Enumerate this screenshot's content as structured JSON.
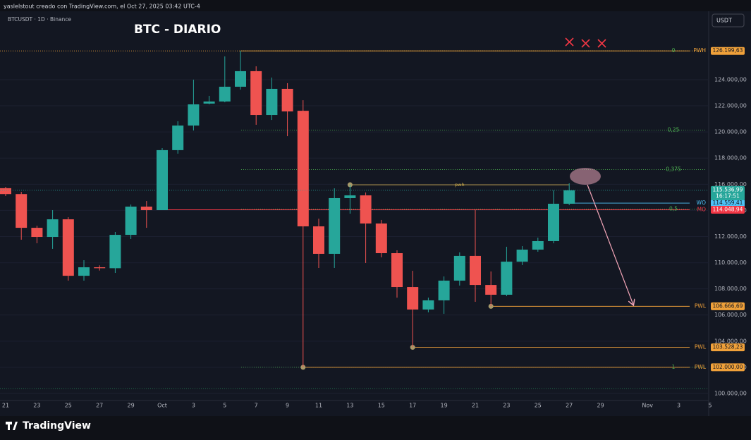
{
  "header": "yaslelstout creado con TradingView.com, el Oct 27, 2025 03:42 UTC-4",
  "footer_logo": "TradingView",
  "chart_data": {
    "type": "candlestick",
    "title": "BTC - DIARIO",
    "symbol": "BTCUSDT · 1D · Binance",
    "currency": "USDT",
    "categories": [
      "21",
      null,
      "23",
      null,
      "25",
      null,
      "27",
      null,
      "29",
      null,
      "Oct",
      null,
      "3",
      null,
      "5",
      null,
      "7",
      null,
      "9",
      null,
      "11",
      null,
      "13",
      null,
      "15",
      null,
      "17",
      null,
      "19",
      null,
      "21",
      null,
      "23",
      null,
      "25",
      null,
      "27",
      null,
      "29",
      null,
      null,
      "Nov",
      null,
      "3",
      null,
      "5"
    ],
    "open": [
      115700,
      115250,
      112670,
      111970,
      113320,
      109000,
      109650,
      109580,
      112130,
      114290,
      114020,
      118610,
      120490,
      122170,
      122330,
      123460,
      124650,
      121300,
      123300,
      121620,
      112780,
      110680,
      114940,
      115150,
      113000,
      110730,
      108140,
      106420,
      107120,
      108630,
      110520,
      108300,
      107550,
      110080,
      111000,
      111650,
      114510,
      null,
      null,
      null,
      null,
      null,
      null,
      null,
      null,
      null
    ],
    "high": [
      115800,
      115420,
      112830,
      114020,
      113480,
      110190,
      109800,
      112350,
      114450,
      114720,
      118770,
      120820,
      124000,
      122760,
      125780,
      126200,
      125020,
      124160,
      123730,
      122430,
      113370,
      115690,
      115960,
      115370,
      113270,
      110950,
      109380,
      107330,
      108950,
      110790,
      114070,
      109330,
      111220,
      111270,
      111920,
      115530,
      116070,
      null,
      null,
      null,
      null,
      null,
      null,
      null,
      null,
      null
    ],
    "low": [
      115100,
      111760,
      111490,
      111060,
      108630,
      108630,
      109400,
      109220,
      111810,
      112670,
      114020,
      118340,
      120110,
      122110,
      122270,
      123240,
      120550,
      120920,
      119680,
      102000,
      109600,
      109600,
      113750,
      109980,
      110410,
      107330,
      103530,
      106200,
      106090,
      108250,
      107010,
      106670,
      107440,
      109820,
      110840,
      111490,
      114400,
      null,
      null,
      null,
      null,
      null,
      null,
      null,
      null,
      null
    ],
    "close": [
      115250,
      112670,
      111970,
      113320,
      109000,
      109650,
      109580,
      112130,
      114290,
      114020,
      118610,
      120490,
      122110,
      122330,
      123460,
      124650,
      121300,
      123300,
      121570,
      112780,
      110680,
      114940,
      115150,
      113000,
      110730,
      108140,
      106420,
      107120,
      108630,
      110520,
      108300,
      107550,
      110080,
      111000,
      111650,
      114510,
      115537,
      null,
      null,
      null,
      null,
      null,
      null,
      null,
      null,
      null
    ],
    "up_color": "#26a69a",
    "down_color": "#ef5350",
    "ylim": [
      99460,
      129230
    ],
    "yticks": [
      {
        "value": 100000,
        "label": "100.000,00"
      },
      {
        "value": 102000,
        "label": "102.000,00"
      },
      {
        "value": 104000,
        "label": "104.000,00"
      },
      {
        "value": 106000,
        "label": "106.000,00"
      },
      {
        "value": 108000,
        "label": "108.000,00"
      },
      {
        "value": 110000,
        "label": "110.000,00"
      },
      {
        "value": 112000,
        "label": "112.000,00"
      },
      {
        "value": 114000,
        "label": "114.000,00"
      },
      {
        "value": 116000,
        "label": "116.000,00"
      },
      {
        "value": 118000,
        "label": "118.000,00"
      },
      {
        "value": 120000,
        "label": "120.000,00"
      },
      {
        "value": 122000,
        "label": "122.000,00"
      },
      {
        "value": 124000,
        "label": "124.000,00"
      }
    ],
    "last_price": {
      "value": 115536.99,
      "label": "115.536,99",
      "countdown": "16:17:51"
    },
    "levels": [
      {
        "name": "PWH",
        "value": 126199.63,
        "label": "126.199,63",
        "color": "#f0a13a"
      },
      {
        "name": "WO",
        "value": 114559.41,
        "label": "114.559,41",
        "color": "#4fc3f7"
      },
      {
        "name": "MO",
        "value": 114048.94,
        "label": "114.048,94",
        "color": "#f23645"
      },
      {
        "name": "PWL",
        "value": 106666.69,
        "label": "106.666,69",
        "color": "#f0a13a"
      },
      {
        "name": "PWL",
        "value": 103528.23,
        "label": "103.528,23",
        "color": "#f0a13a"
      },
      {
        "name": "PWL",
        "value": 102000.0,
        "label": "102.000,00",
        "color": "#f0a13a"
      }
    ],
    "pwh_marker": {
      "name": "pwh",
      "value": 115960
    },
    "fib": {
      "color": "#4caf50",
      "levels": [
        {
          "value": 0,
          "label": "0"
        },
        {
          "value": 0.25,
          "label": "0,25"
        },
        {
          "value": 0.375,
          "label": "0,375"
        },
        {
          "value": 0.5,
          "label": "0,5"
        },
        {
          "value": 1,
          "label": "1"
        }
      ]
    }
  }
}
